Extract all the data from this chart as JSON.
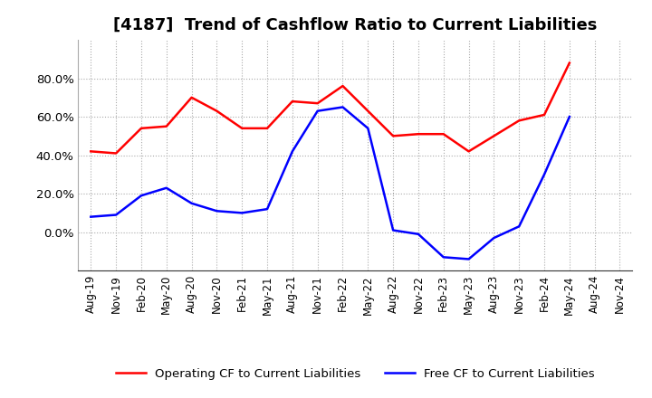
{
  "title": "[4187]  Trend of Cashflow Ratio to Current Liabilities",
  "x_labels": [
    "Aug-19",
    "Nov-19",
    "Feb-20",
    "May-20",
    "Aug-20",
    "Nov-20",
    "Feb-21",
    "May-21",
    "Aug-21",
    "Nov-21",
    "Feb-22",
    "May-22",
    "Aug-22",
    "Nov-22",
    "Feb-23",
    "May-23",
    "Aug-23",
    "Nov-23",
    "Feb-24",
    "May-24",
    "Aug-24",
    "Nov-24"
  ],
  "operating_cf": [
    0.42,
    0.41,
    0.54,
    0.55,
    0.7,
    0.63,
    0.54,
    0.54,
    0.68,
    0.67,
    0.76,
    0.63,
    0.5,
    0.51,
    0.51,
    0.42,
    0.5,
    0.58,
    0.61,
    0.88,
    null,
    null
  ],
  "free_cf": [
    0.08,
    0.09,
    0.19,
    0.23,
    0.15,
    0.11,
    0.1,
    0.12,
    0.42,
    0.63,
    0.65,
    0.54,
    0.01,
    -0.01,
    -0.13,
    -0.14,
    -0.03,
    0.03,
    0.3,
    0.6,
    null,
    null
  ],
  "operating_color": "#FF0000",
  "free_color": "#0000FF",
  "ylim": [
    -0.2,
    1.0
  ],
  "yticks": [
    0.0,
    0.2,
    0.4,
    0.6,
    0.8
  ],
  "background_color": "#FFFFFF",
  "grid_color": "#AAAAAA",
  "title_fontsize": 13,
  "tick_fontsize": 8.5,
  "legend_fontsize": 9.5
}
